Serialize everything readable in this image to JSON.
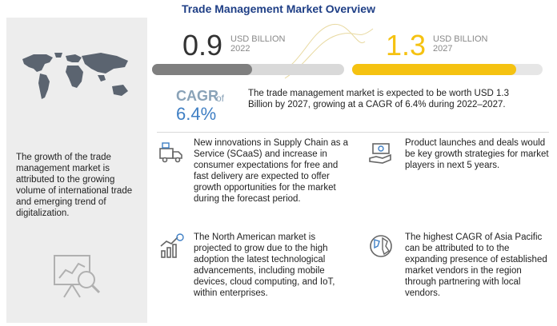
{
  "header": {
    "title": "Trade Management Market Overview"
  },
  "left": {
    "description": "The growth of the trade management market is attributed to the growing volume of international trade and emerging trend of digitalization."
  },
  "values": {
    "v2022": {
      "number": "0.9",
      "unit": "USD BILLION",
      "year": "2022",
      "fill_fraction": 0.52,
      "color": "#7f7f7f"
    },
    "v2027": {
      "number": "1.3",
      "unit": "USD BILLION",
      "year": "2027",
      "fill_fraction": 0.86,
      "color": "#f5c211"
    }
  },
  "cagr": {
    "label": "CAGR",
    "of": "of",
    "value": "6.4%",
    "summary": "The trade management market is expected to be worth USD 1.3 Billion by 2027, growing at a CAGR of 6.4% during 2022–2027."
  },
  "points": [
    {
      "icon": "supply-chain-icon",
      "text": "New innovations in Supply Chain as a Service (SCaaS) and increase in consumer expectations for free and fast delivery are expected to offer growth opportunities for the market during the forecast period."
    },
    {
      "icon": "money-hand-icon",
      "text": "Product launches and deals would be key growth strategies for market players in next 5 years."
    },
    {
      "icon": "growth-chart-icon",
      "text": "The North American market is projected to grow due to the high adoption the latest technological advancements, including mobile devices, cloud computing, and IoT, within enterprises."
    },
    {
      "icon": "globe-icon",
      "text": "The highest CAGR of Asia Pacific can be attributed to to the expanding presence of established market vendors in the region through partnering with local vendors."
    }
  ],
  "colors": {
    "title": "#1f3f86",
    "accent_blue": "#3f7fc4",
    "gray_bar": "#7f7f7f",
    "yellow_bar": "#f5c211",
    "panel": "#ededed"
  }
}
